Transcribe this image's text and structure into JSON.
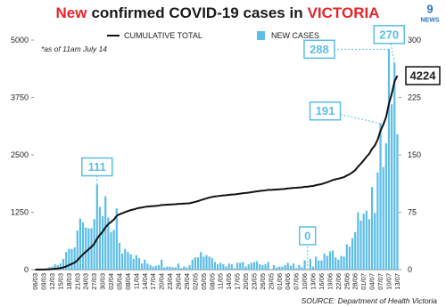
{
  "chart_data": {
    "type": "bar-line",
    "title": [
      {
        "text": "New",
        "color": "#e3262b"
      },
      {
        "text": "confirmed COVID-19 cases in",
        "color": "#1a1a1a"
      },
      {
        "text": "VICTORIA",
        "color": "#e3262b"
      }
    ],
    "logo": {
      "mark": "9",
      "text": "NEWS"
    },
    "note": "*as of 11am July 14",
    "source": "SOURCE: Department of Health Victoria",
    "legend": "top",
    "categories": [
      "06/03",
      null,
      null,
      "09/03",
      null,
      null,
      "12/03",
      null,
      null,
      "15/03",
      null,
      null,
      "18/03",
      null,
      null,
      "21/03",
      null,
      null,
      "24/03",
      null,
      null,
      "27/03",
      null,
      null,
      "30/03",
      null,
      null,
      "02/04",
      null,
      null,
      "05/04",
      null,
      null,
      "08/04",
      null,
      null,
      "11/04",
      null,
      null,
      "14/04",
      null,
      null,
      "17/04",
      null,
      null,
      "20/04",
      null,
      null,
      "23/04",
      null,
      null,
      "26/04",
      null,
      null,
      "29/04",
      null,
      null,
      "02/05",
      null,
      null,
      "05/05",
      null,
      null,
      "08/05",
      null,
      null,
      "11/05",
      null,
      null,
      "14/05",
      null,
      null,
      "17/05",
      null,
      null,
      "20/05",
      null,
      null,
      "23/05",
      null,
      null,
      "26/05",
      null,
      null,
      "29/05",
      null,
      null,
      "01/06",
      null,
      null,
      "04/06",
      null,
      null,
      "07/06",
      null,
      null,
      "10/06",
      null,
      null,
      "13/06",
      null,
      null,
      "16/06",
      null,
      null,
      "19/06",
      null,
      null,
      "22/06",
      null,
      null,
      "25/06",
      null,
      null,
      "28/06",
      null,
      null,
      "01/07",
      null,
      null,
      "04/07",
      null,
      null,
      "07/07",
      null,
      null,
      "10/07",
      null,
      null,
      "13/07"
    ],
    "ylim": [
      0,
      5000
    ],
    "yticks": [
      0,
      1250,
      2500,
      3750,
      5000
    ],
    "y2lim": [
      0,
      300
    ],
    "y2ticks": [
      0,
      75,
      150,
      225,
      300
    ],
    "series": [
      {
        "name": "CUMULATIVE TOTAL",
        "kind": "line",
        "color": "#111111",
        "values": [
          1,
          2,
          2,
          3,
          5,
          8,
          12,
          19,
          25,
          33,
          47,
          70,
          97,
          124,
          153,
          204,
          271,
          333,
          388,
          442,
          496,
          562,
          673,
          755,
          825,
          921,
          989,
          1038,
          1090,
          1170,
          1205,
          1226,
          1253,
          1276,
          1296,
          1310,
          1329,
          1344,
          1352,
          1365,
          1373,
          1379,
          1383,
          1388,
          1394,
          1407,
          1410,
          1414,
          1418,
          1421,
          1424,
          1432,
          1434,
          1438,
          1441,
          1447,
          1460,
          1476,
          1492,
          1515,
          1532,
          1551,
          1568,
          1583,
          1593,
          1600,
          1609,
          1616,
          1620,
          1628,
          1635,
          1637,
          1646,
          1655,
          1665,
          1669,
          1676,
          1685,
          1695,
          1706,
          1713,
          1719,
          1726,
          1736,
          1736,
          1742,
          1745,
          1749,
          1753,
          1759,
          1768,
          1773,
          1781,
          1783,
          1789,
          1792,
          1804,
          1804,
          1818,
          1822,
          1839,
          1851,
          1863,
          1884,
          1902,
          1926,
          1951,
          1967,
          1980,
          1998,
          2015,
          2048,
          2078,
          2119,
          2168,
          2243,
          2307,
          2380,
          2457,
          2523,
          2631,
          2705,
          2832,
          3023,
          3157,
          3322,
          3610,
          3826,
          4096,
          4224
        ],
        "value_labels": [
          null,
          null,
          null,
          null,
          null,
          null,
          null,
          null,
          null,
          null,
          null,
          null,
          null,
          null,
          null,
          null,
          null,
          null,
          null,
          null,
          null,
          null,
          null,
          null,
          null,
          null,
          null,
          null,
          null,
          null,
          null,
          null,
          null,
          null,
          null,
          null,
          null,
          null,
          null,
          null,
          null,
          null,
          null,
          null,
          null,
          null,
          null,
          null,
          null,
          null,
          null,
          null,
          null,
          null,
          null,
          null,
          null,
          null,
          null,
          null,
          null,
          null,
          null,
          null,
          null,
          null,
          null,
          null,
          null,
          null,
          null,
          null,
          null,
          null,
          null,
          null,
          null,
          null,
          null,
          null,
          null,
          null,
          null,
          null,
          null,
          null,
          null,
          null,
          null,
          null,
          null,
          null,
          null,
          null,
          null,
          null,
          null,
          null,
          null,
          null,
          null,
          null,
          null,
          null,
          null,
          null,
          null,
          null,
          null,
          null,
          null,
          null,
          null,
          null,
          null,
          null,
          null,
          null,
          null,
          null,
          null,
          null,
          null,
          null,
          null,
          null,
          null,
          null,
          null,
          "4224"
        ]
      },
      {
        "name": "NEW CASES",
        "kind": "bar",
        "axis": "y2",
        "color": "#5bbde8",
        "values": [
          1,
          1,
          0,
          1,
          2,
          3,
          4,
          7,
          6,
          8,
          14,
          23,
          27,
          27,
          29,
          51,
          67,
          62,
          55,
          54,
          54,
          66,
          111,
          82,
          70,
          96,
          68,
          49,
          52,
          80,
          35,
          21,
          27,
          23,
          20,
          14,
          19,
          15,
          8,
          13,
          8,
          6,
          4,
          5,
          6,
          13,
          3,
          4,
          4,
          3,
          3,
          8,
          2,
          4,
          3,
          6,
          13,
          16,
          16,
          23,
          17,
          19,
          17,
          15,
          10,
          7,
          9,
          7,
          4,
          8,
          7,
          2,
          9,
          9,
          10,
          4,
          7,
          9,
          10,
          11,
          7,
          6,
          7,
          10,
          0,
          6,
          3,
          4,
          4,
          6,
          9,
          5,
          8,
          2,
          6,
          3,
          12,
          0,
          14,
          4,
          17,
          12,
          12,
          21,
          18,
          24,
          25,
          16,
          13,
          18,
          17,
          33,
          30,
          41,
          49,
          75,
          64,
          73,
          77,
          66,
          108,
          74,
          127,
          191,
          134,
          165,
          288,
          216,
          270,
          177
        ],
        "value_labels": [
          null,
          null,
          null,
          null,
          null,
          null,
          null,
          null,
          null,
          null,
          null,
          null,
          null,
          null,
          null,
          null,
          null,
          null,
          null,
          null,
          null,
          null,
          "111",
          null,
          null,
          null,
          null,
          null,
          null,
          null,
          null,
          null,
          null,
          null,
          null,
          null,
          null,
          null,
          null,
          null,
          null,
          null,
          null,
          null,
          null,
          null,
          null,
          null,
          null,
          null,
          null,
          null,
          null,
          null,
          null,
          null,
          null,
          null,
          null,
          null,
          null,
          null,
          null,
          null,
          null,
          null,
          null,
          null,
          null,
          null,
          null,
          null,
          null,
          null,
          null,
          null,
          null,
          null,
          null,
          null,
          null,
          null,
          null,
          null,
          null,
          null,
          null,
          null,
          null,
          null,
          null,
          null,
          null,
          null,
          null,
          null,
          null,
          "0",
          null,
          null,
          null,
          null,
          null,
          null,
          null,
          null,
          null,
          null,
          null,
          null,
          null,
          null,
          null,
          null,
          null,
          null,
          null,
          null,
          null,
          null,
          null,
          null,
          null,
          "191",
          null,
          null,
          "288",
          null,
          "270",
          null
        ]
      }
    ]
  }
}
